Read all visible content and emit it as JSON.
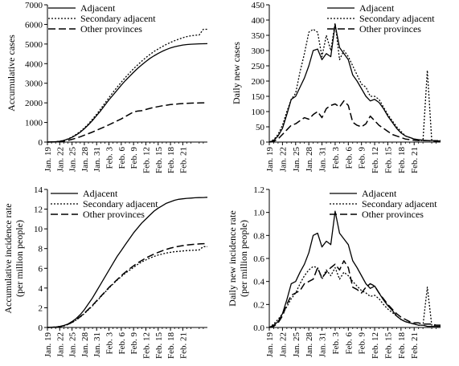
{
  "chart_data": [
    {
      "type": "line",
      "ylabel": "Accumulative cases",
      "ylim": [
        0,
        7000
      ],
      "yticks": [
        "0",
        "1000",
        "2000",
        "3000",
        "4000",
        "5000",
        "6000",
        "7000"
      ],
      "xticks": [
        "Jan. 19",
        "Jan. 22",
        "Jan. 25",
        "Jan. 28",
        "Jan. 31",
        "Feb. 3",
        "Feb. 6",
        "Feb. 9",
        "Feb. 12",
        "Feb. 15",
        "Feb. 18",
        "Feb. 21"
      ],
      "legend": "top-left",
      "series": [
        {
          "name": "Adjacent",
          "style": "solid",
          "values": [
            0,
            10,
            20,
            40,
            80,
            150,
            240,
            360,
            500,
            680,
            880,
            1100,
            1350,
            1600,
            1880,
            2150,
            2400,
            2650,
            2900,
            3130,
            3350,
            3560,
            3760,
            3940,
            4110,
            4270,
            4400,
            4520,
            4630,
            4720,
            4800,
            4860,
            4910,
            4950,
            4975,
            4990,
            5000,
            5010,
            5015,
            5020
          ]
        },
        {
          "name": "Secondary adjacent",
          "style": "dotted",
          "values": [
            0,
            10,
            20,
            40,
            85,
            160,
            260,
            390,
            540,
            720,
            930,
            1170,
            1420,
            1690,
            1980,
            2260,
            2540,
            2800,
            3050,
            3290,
            3520,
            3740,
            3940,
            4130,
            4310,
            4470,
            4620,
            4750,
            4870,
            4980,
            5080,
            5170,
            5250,
            5320,
            5380,
            5420,
            5450,
            5460,
            5750,
            5750
          ]
        },
        {
          "name": "Other provinces",
          "style": "dashed",
          "values": [
            0,
            5,
            10,
            25,
            50,
            90,
            140,
            200,
            270,
            350,
            430,
            510,
            600,
            690,
            780,
            880,
            980,
            1080,
            1180,
            1300,
            1420,
            1540,
            1580,
            1600,
            1660,
            1720,
            1770,
            1810,
            1850,
            1880,
            1910,
            1930,
            1950,
            1965,
            1975,
            1985,
            1990,
            1995,
            2000,
            2000
          ]
        }
      ]
    },
    {
      "type": "line",
      "ylabel": "Daily new cases",
      "ylim": [
        0,
        450
      ],
      "yticks": [
        "0",
        "50",
        "100",
        "150",
        "200",
        "250",
        "300",
        "350",
        "400",
        "450"
      ],
      "xticks": [
        "Jan. 19",
        "Jan. 22",
        "Jan. 25",
        "Jan. 28",
        "Jan. 31",
        "Feb. 3",
        "Feb. 6",
        "Feb. 9",
        "Feb. 12",
        "Feb. 15",
        "Feb. 18",
        "Feb. 21"
      ],
      "legend": "top-right",
      "series": [
        {
          "name": "Adjacent",
          "style": "solid",
          "values": [
            0,
            5,
            20,
            45,
            90,
            140,
            150,
            180,
            210,
            250,
            300,
            305,
            270,
            290,
            280,
            385,
            310,
            290,
            270,
            220,
            200,
            175,
            150,
            135,
            140,
            130,
            110,
            85,
            65,
            45,
            30,
            20,
            15,
            10,
            8,
            6,
            5,
            5,
            5,
            3
          ]
        },
        {
          "name": "Secondary adjacent",
          "style": "dotted",
          "values": [
            0,
            8,
            25,
            55,
            100,
            140,
            160,
            230,
            290,
            360,
            370,
            360,
            280,
            350,
            300,
            390,
            270,
            300,
            280,
            250,
            220,
            190,
            180,
            150,
            150,
            140,
            115,
            90,
            70,
            50,
            35,
            20,
            15,
            10,
            5,
            5,
            235,
            5,
            5,
            5
          ]
        },
        {
          "name": "Other provinces",
          "style": "dashed",
          "values": [
            0,
            2,
            10,
            25,
            40,
            55,
            60,
            70,
            80,
            75,
            90,
            100,
            80,
            110,
            120,
            125,
            115,
            135,
            120,
            65,
            55,
            50,
            60,
            85,
            70,
            55,
            45,
            35,
            25,
            20,
            15,
            10,
            8,
            6,
            5,
            5,
            5,
            4,
            3,
            2
          ]
        }
      ]
    },
    {
      "type": "line",
      "ylabel": "Accumulative incidence rate",
      "ylabel2": "(per million people)",
      "ylim": [
        0,
        14
      ],
      "yticks": [
        "0",
        "2",
        "4",
        "6",
        "8",
        "10",
        "12",
        "14"
      ],
      "xticks": [
        "Jan. 19",
        "Jan. 22",
        "Jan. 25",
        "Jan. 28",
        "Jan. 31",
        "Feb. 3",
        "Feb. 6",
        "Feb. 9",
        "Feb. 12",
        "Feb. 15",
        "Feb. 18",
        "Feb. 21"
      ],
      "legend": "top-right",
      "series": [
        {
          "name": "Adjacent",
          "style": "solid",
          "values": [
            0,
            0.02,
            0.05,
            0.1,
            0.2,
            0.35,
            0.6,
            0.9,
            1.3,
            1.8,
            2.4,
            3.0,
            3.7,
            4.4,
            5.1,
            5.8,
            6.5,
            7.2,
            7.8,
            8.4,
            9.0,
            9.6,
            10.1,
            10.6,
            11.0,
            11.4,
            11.8,
            12.1,
            12.35,
            12.6,
            12.75,
            12.9,
            13.0,
            13.05,
            13.1,
            13.12,
            13.15,
            13.17,
            13.18,
            13.2
          ]
        },
        {
          "name": "Secondary adjacent",
          "style": "dotted",
          "values": [
            0,
            0.02,
            0.04,
            0.08,
            0.15,
            0.3,
            0.5,
            0.75,
            1.05,
            1.4,
            1.8,
            2.2,
            2.65,
            3.1,
            3.55,
            4.0,
            4.4,
            4.8,
            5.15,
            5.5,
            5.8,
            6.1,
            6.4,
            6.65,
            6.85,
            7.05,
            7.2,
            7.35,
            7.45,
            7.55,
            7.62,
            7.68,
            7.72,
            7.76,
            7.8,
            7.82,
            7.84,
            7.86,
            8.2,
            8.2
          ]
        },
        {
          "name": "Other provinces",
          "style": "dashed",
          "values": [
            0,
            0.02,
            0.05,
            0.1,
            0.18,
            0.32,
            0.52,
            0.78,
            1.1,
            1.45,
            1.85,
            2.25,
            2.7,
            3.15,
            3.6,
            4.05,
            4.45,
            4.85,
            5.25,
            5.6,
            5.95,
            6.25,
            6.55,
            6.8,
            7.05,
            7.25,
            7.45,
            7.62,
            7.78,
            7.92,
            8.05,
            8.15,
            8.23,
            8.3,
            8.36,
            8.4,
            8.44,
            8.47,
            8.5,
            8.5
          ]
        }
      ]
    },
    {
      "type": "line",
      "ylabel": "Daily new incidence rate",
      "ylabel2": "(per million people)",
      "ylim": [
        0,
        1.2
      ],
      "yticks": [
        "0.0",
        "0.2",
        "0.4",
        "0.6",
        "0.8",
        "1.0",
        "1.2"
      ],
      "xticks": [
        "Jan. 19",
        "Jan. 22",
        "Jan. 25",
        "Jan. 28",
        "Jan. 31",
        "Feb. 3",
        "Feb. 6",
        "Feb. 9",
        "Feb. 12",
        "Feb. 15",
        "Feb. 18",
        "Feb. 21"
      ],
      "legend": "top-right",
      "series": [
        {
          "name": "Adjacent",
          "style": "solid",
          "values": [
            0,
            0.02,
            0.05,
            0.12,
            0.24,
            0.38,
            0.4,
            0.48,
            0.55,
            0.65,
            0.8,
            0.82,
            0.7,
            0.75,
            0.72,
            1.01,
            0.82,
            0.77,
            0.72,
            0.58,
            0.52,
            0.45,
            0.38,
            0.34,
            0.36,
            0.3,
            0.24,
            0.19,
            0.15,
            0.1,
            0.07,
            0.05,
            0.04,
            0.03,
            0.02,
            0.02,
            0.01,
            0.01,
            0.01,
            0.01
          ]
        },
        {
          "name": "Secondary adjacent",
          "style": "dotted",
          "values": [
            0,
            0.03,
            0.07,
            0.12,
            0.18,
            0.25,
            0.3,
            0.38,
            0.45,
            0.5,
            0.53,
            0.52,
            0.42,
            0.5,
            0.45,
            0.52,
            0.42,
            0.48,
            0.45,
            0.4,
            0.36,
            0.32,
            0.3,
            0.27,
            0.28,
            0.25,
            0.2,
            0.16,
            0.13,
            0.1,
            0.07,
            0.05,
            0.04,
            0.03,
            0.02,
            0.02,
            0.35,
            0.02,
            0.01,
            0.01
          ]
        },
        {
          "name": "Other provinces",
          "style": "dashed",
          "values": [
            0,
            0.01,
            0.04,
            0.1,
            0.2,
            0.28,
            0.3,
            0.32,
            0.38,
            0.4,
            0.42,
            0.52,
            0.43,
            0.48,
            0.52,
            0.55,
            0.5,
            0.58,
            0.52,
            0.35,
            0.33,
            0.3,
            0.35,
            0.38,
            0.36,
            0.3,
            0.25,
            0.2,
            0.16,
            0.12,
            0.09,
            0.07,
            0.05,
            0.04,
            0.04,
            0.03,
            0.03,
            0.03,
            0.02,
            0.02
          ]
        }
      ]
    }
  ]
}
